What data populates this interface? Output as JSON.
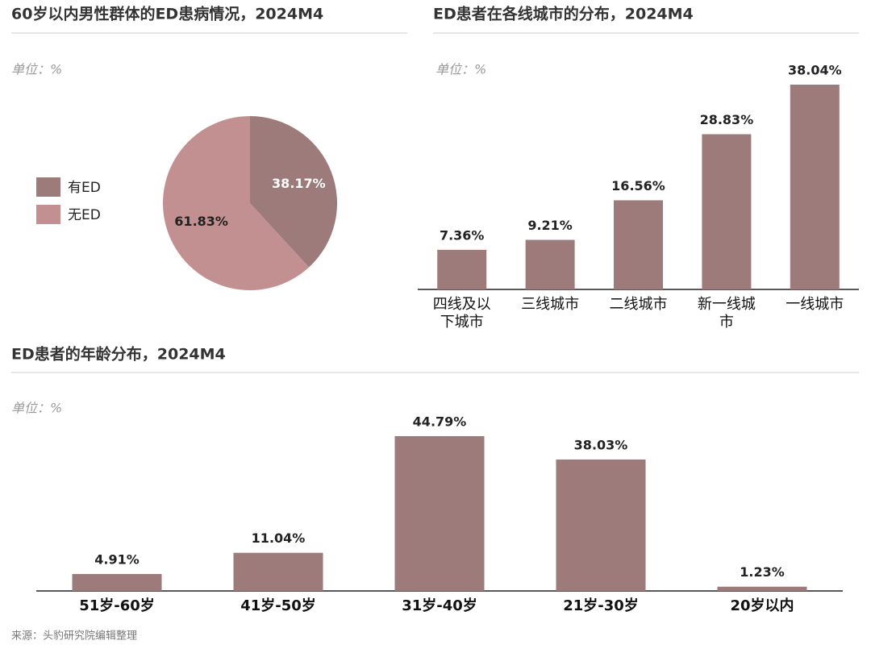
{
  "chart_data": [
    {
      "type": "pie",
      "title": "60岁以内男性群体的ED患病情况，2024M4",
      "subtitle": "单位：%",
      "categories": [
        "有ED",
        "无ED"
      ],
      "values": [
        38.17,
        61.83
      ],
      "value_labels": [
        "38.17%",
        "61.83%"
      ],
      "colors": [
        "#9e7b7b",
        "#c29090"
      ]
    },
    {
      "type": "bar",
      "title": "ED患者在各线城市的分布，2024M4",
      "subtitle": "单位：%",
      "categories": [
        "四线及以下城市",
        "三线城市",
        "二线城市",
        "新一线城市",
        "一线城市"
      ],
      "values": [
        7.36,
        9.21,
        16.56,
        28.83,
        38.04
      ],
      "value_labels": [
        "7.36%",
        "9.21%",
        "16.56%",
        "28.83%",
        "38.04%"
      ],
      "color": "#9e7b7b"
    },
    {
      "type": "bar",
      "title": "ED患者的年龄分布，2024M4",
      "subtitle": "单位：%",
      "categories": [
        "51岁-60岁",
        "41岁-50岁",
        "31岁-40岁",
        "21岁-30岁",
        "20岁以内"
      ],
      "values": [
        4.91,
        11.04,
        44.79,
        38.03,
        1.23
      ],
      "value_labels": [
        "4.91%",
        "11.04%",
        "44.79%",
        "38.03%",
        "1.23%"
      ],
      "color": "#9e7b7b"
    }
  ],
  "source": "来源：头豹研究院编辑整理"
}
